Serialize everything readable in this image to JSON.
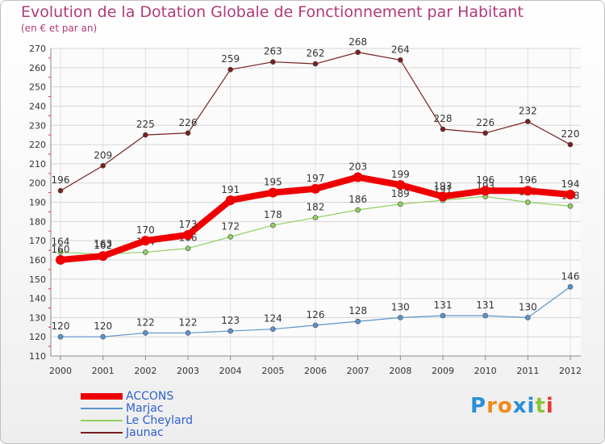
{
  "title": "Evolution de la Dotation Globale de Fonctionnement par Habitant",
  "subtitle": "(en € et par an)",
  "logo": [
    "P",
    "r",
    "o",
    "x",
    "i",
    "t",
    "i"
  ],
  "logo_colors": [
    "#2a8fd8",
    "#f08a1c",
    "#f08a1c",
    "#2a8fd8",
    "#2a8fd8",
    "#8bc53f",
    "#e53935"
  ],
  "chart_data": {
    "type": "line",
    "x": [
      "2000",
      "2001",
      "2002",
      "2003",
      "2004",
      "2005",
      "2006",
      "2007",
      "2008",
      "2009",
      "2010",
      "2011",
      "2012"
    ],
    "ylim": [
      110,
      270
    ],
    "yticks": [
      110,
      120,
      130,
      140,
      150,
      160,
      170,
      180,
      190,
      200,
      210,
      220,
      230,
      240,
      250,
      260,
      270
    ],
    "grid": true,
    "legend_position": "bottom-left",
    "series": [
      {
        "name": "Jaunac",
        "color": "#7a1f1f",
        "values": [
          196,
          209,
          225,
          226,
          259,
          263,
          262,
          268,
          264,
          228,
          226,
          232,
          220
        ]
      },
      {
        "name": "Le Cheylard",
        "color": "#90d060",
        "values": [
          164,
          163,
          164,
          166,
          172,
          178,
          182,
          186,
          189,
          191,
          193,
          190,
          188
        ]
      },
      {
        "name": "Marjac",
        "color": "#5b94cc",
        "values": [
          120,
          120,
          122,
          122,
          123,
          124,
          126,
          128,
          130,
          131,
          131,
          130,
          146
        ]
      },
      {
        "name": "ACCONS",
        "color": "#ee0000",
        "values": [
          160,
          162,
          170,
          173,
          191,
          195,
          197,
          203,
          199,
          193,
          196,
          196,
          194
        ]
      }
    ],
    "legend": [
      {
        "name": "ACCONS",
        "color": "#ee0000"
      },
      {
        "name": "Marjac",
        "color": "#5b94cc"
      },
      {
        "name": "Le Cheylard",
        "color": "#90d060"
      },
      {
        "name": "Jaunac",
        "color": "#7a1f1f"
      }
    ]
  }
}
